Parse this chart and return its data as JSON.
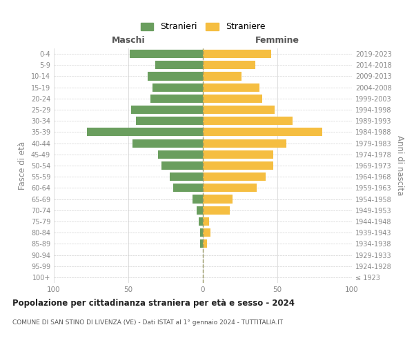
{
  "age_groups": [
    "100+",
    "95-99",
    "90-94",
    "85-89",
    "80-84",
    "75-79",
    "70-74",
    "65-69",
    "60-64",
    "55-59",
    "50-54",
    "45-49",
    "40-44",
    "35-39",
    "30-34",
    "25-29",
    "20-24",
    "15-19",
    "10-14",
    "5-9",
    "0-4"
  ],
  "birth_years": [
    "≤ 1923",
    "1924-1928",
    "1929-1933",
    "1934-1938",
    "1939-1943",
    "1944-1948",
    "1949-1953",
    "1954-1958",
    "1959-1963",
    "1964-1968",
    "1969-1973",
    "1974-1978",
    "1979-1983",
    "1984-1988",
    "1989-1993",
    "1994-1998",
    "1999-2003",
    "2004-2008",
    "2009-2013",
    "2014-2018",
    "2019-2023"
  ],
  "maschi": [
    0,
    0,
    0,
    2,
    2,
    3,
    4,
    7,
    20,
    22,
    28,
    30,
    47,
    78,
    45,
    48,
    35,
    34,
    37,
    32,
    49
  ],
  "femmine": [
    0,
    0,
    0,
    3,
    5,
    4,
    18,
    20,
    36,
    42,
    47,
    47,
    56,
    80,
    60,
    48,
    40,
    38,
    26,
    35,
    46
  ],
  "maschi_color": "#6a9e5e",
  "femmine_color": "#f5be41",
  "background_color": "#ffffff",
  "grid_color": "#d0d0d0",
  "title": "Popolazione per cittadinanza straniera per età e sesso - 2024",
  "subtitle": "COMUNE DI SAN STINO DI LIVENZA (VE) - Dati ISTAT al 1° gennaio 2024 - TUTTITALIA.IT",
  "xlabel_maschi": "Maschi",
  "xlabel_femmine": "Femmine",
  "ylabel_left": "Fasce di età",
  "ylabel_right": "Anni di nascita",
  "legend_maschi": "Stranieri",
  "legend_femmine": "Straniere",
  "xlim": 100
}
